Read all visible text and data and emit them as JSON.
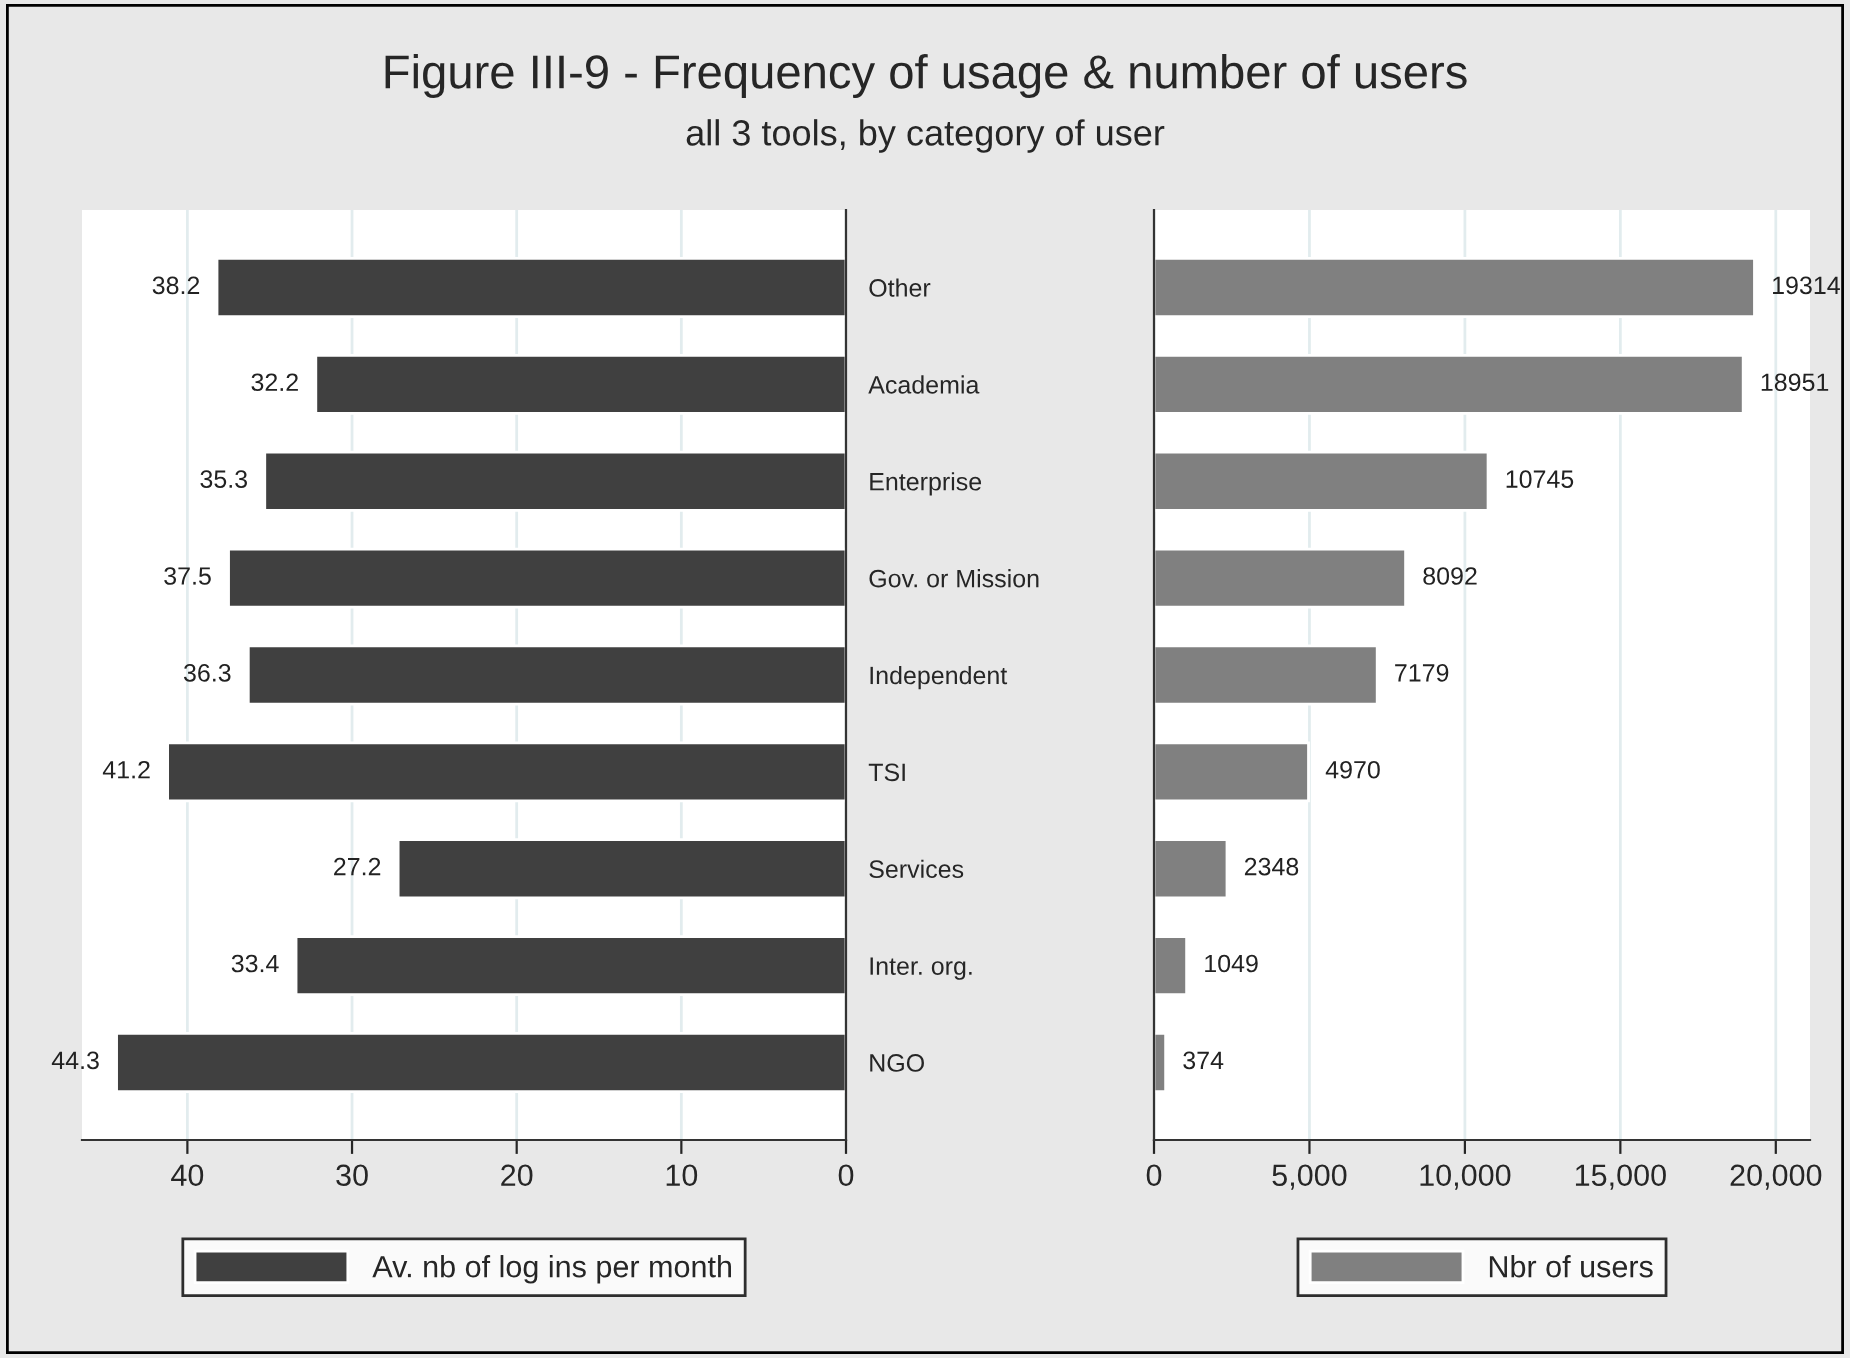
{
  "chart_data": [
    {
      "type": "bar",
      "orientation": "horizontal",
      "title": "Figure III-9 - Frequency of usage & number of users",
      "subtitle": "all 3 tools, by category of user",
      "categories": [
        "Other",
        "Academia",
        "Enterprise",
        "Gov. or Mission",
        "Independent",
        "TSI",
        "Services",
        "Inter. org.",
        "NGO"
      ],
      "series": [
        {
          "name": "Av. nb of log ins per month",
          "color": "#404040",
          "values": [
            38.2,
            32.2,
            35.3,
            37.5,
            36.3,
            41.2,
            27.2,
            33.4,
            44.3
          ]
        }
      ],
      "xlim": [
        46.4,
        0
      ],
      "xticks": [
        40,
        30,
        20,
        10,
        0
      ],
      "grid": "x",
      "legend": "bottom",
      "data_labels": true
    },
    {
      "type": "bar",
      "orientation": "horizontal",
      "categories": [
        null,
        null,
        null,
        null,
        null,
        null,
        null,
        null,
        null
      ],
      "series": [
        {
          "name": "Nbr of users",
          "color": "#808080",
          "values": [
            19314,
            18951,
            10745,
            8092,
            7179,
            4970,
            2348,
            1049,
            374
          ]
        }
      ],
      "xlim": [
        0,
        21100
      ],
      "xticks": [
        0,
        {
          "value": 5000,
          "label": "5,000"
        },
        {
          "value": 10000,
          "label": "10,000"
        },
        {
          "value": 15000,
          "label": "15,000"
        },
        {
          "value": 20000,
          "label": "20,000"
        }
      ],
      "grid": "x",
      "legend": "bottom",
      "data_labels": true,
      "tick_labels": "x"
    }
  ]
}
